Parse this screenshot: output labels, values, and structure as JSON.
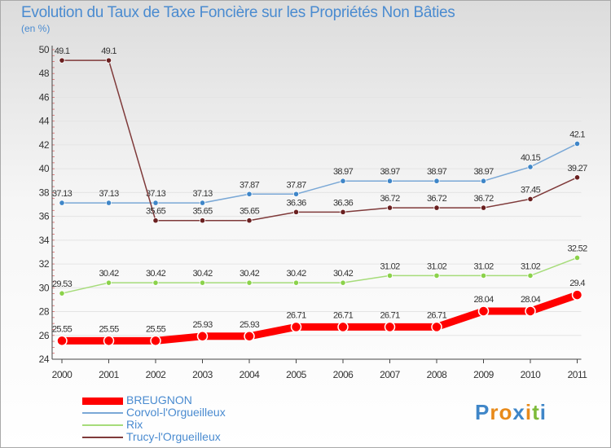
{
  "title": "Evolution du Taux de Taxe Foncière sur les Propriétés Non Bâties",
  "subtitle": "(en %)",
  "logo": "Proxiti",
  "colors": {
    "title": "#4a8bd0"
  },
  "chart_data": {
    "type": "line",
    "title": "Evolution du Taux de Taxe Foncière sur les Propriétés Non Bâties",
    "ylabel": "(en %)",
    "xlabel": "",
    "ylim": [
      24,
      50
    ],
    "yticks": [
      24,
      26,
      28,
      30,
      32,
      34,
      36,
      38,
      40,
      42,
      44,
      46,
      48,
      50
    ],
    "categories": [
      "2000",
      "2001",
      "2002",
      "2003",
      "2004",
      "2005",
      "2006",
      "2007",
      "2008",
      "2009",
      "2010",
      "2011"
    ],
    "grid": true,
    "legend_position": "bottom-left",
    "series": [
      {
        "name": "BREUGNON",
        "color": "#ff0000",
        "marker": "#ff0000",
        "thick": true,
        "values": [
          25.55,
          25.55,
          25.55,
          25.93,
          25.93,
          26.71,
          26.71,
          26.71,
          26.71,
          28.04,
          28.04,
          29.4
        ],
        "labels": [
          "25.55",
          "25.55",
          "25.55",
          "25.93",
          "25.93",
          "26.71",
          "26.71",
          "26.71",
          "26.71",
          "28.04",
          "28.04",
          "29.4"
        ]
      },
      {
        "name": "Corvol-l'Orgueilleux",
        "color": "#7aa8d6",
        "marker": "#3f86c8",
        "thick": false,
        "values": [
          37.13,
          37.13,
          37.13,
          37.13,
          37.87,
          37.87,
          38.97,
          38.97,
          38.97,
          38.97,
          40.15,
          42.1
        ],
        "labels": [
          "37.13",
          "37.13",
          "37.13",
          "37.13",
          "37.87",
          "37.87",
          "38.97",
          "38.97",
          "38.97",
          "38.97",
          "40.15",
          "42.1"
        ]
      },
      {
        "name": "Rix",
        "color": "#a6dc7a",
        "marker": "#8bd24a",
        "thick": false,
        "values": [
          29.53,
          30.42,
          30.42,
          30.42,
          30.42,
          30.42,
          30.42,
          31.02,
          31.02,
          31.02,
          31.02,
          32.52
        ],
        "labels": [
          "29.53",
          "30.42",
          "30.42",
          "30.42",
          "30.42",
          "30.42",
          "30.42",
          "31.02",
          "31.02",
          "31.02",
          "31.02",
          "32.52"
        ]
      },
      {
        "name": "Trucy-l'Orgueilleux",
        "color": "#7f3a3a",
        "marker": "#6a2020",
        "thick": false,
        "values": [
          49.1,
          49.1,
          35.65,
          35.65,
          35.65,
          36.36,
          36.36,
          36.72,
          36.72,
          36.72,
          37.45,
          39.27
        ],
        "labels": [
          "49.1",
          "49.1",
          "35.65",
          "35.65",
          "35.65",
          "36.36",
          "36.36",
          "36.72",
          "36.72",
          "36.72",
          "37.45",
          "39.27"
        ]
      }
    ]
  }
}
